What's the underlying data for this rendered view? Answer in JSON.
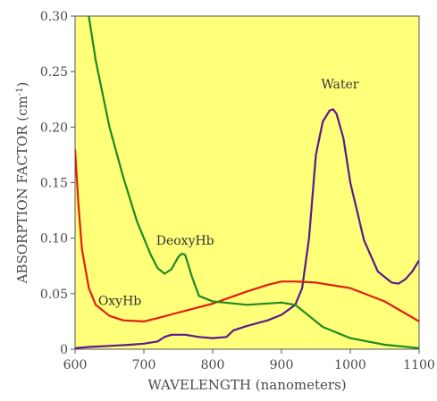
{
  "chart_data": {
    "type": "line",
    "title": "",
    "xlabel": "WAVELENGTH (nanometers)",
    "ylabel": "ABSORPTION FACTOR (cm",
    "ylabel_sup": "-1",
    "ylabel_close": ")",
    "xlim": [
      600,
      1100
    ],
    "ylim": [
      0,
      0.3
    ],
    "xticks": [
      "600",
      "700",
      "800",
      "900",
      "1000",
      "1100"
    ],
    "yticks": [
      "0",
      "0.05",
      "0.10",
      "0.15",
      "0.20",
      "0.25",
      "0.30"
    ],
    "grid": false,
    "background": "#ffff7a",
    "series": [
      {
        "name": "Water",
        "color": "#5b1a8c",
        "x": [
          600,
          620,
          650,
          680,
          700,
          720,
          730,
          740,
          760,
          780,
          800,
          820,
          830,
          850,
          880,
          900,
          920,
          930,
          940,
          950,
          960,
          970,
          975,
          980,
          990,
          1000,
          1020,
          1040,
          1060,
          1070,
          1080,
          1090,
          1100
        ],
        "y": [
          0.001,
          0.002,
          0.003,
          0.004,
          0.005,
          0.007,
          0.011,
          0.013,
          0.013,
          0.011,
          0.01,
          0.011,
          0.017,
          0.021,
          0.026,
          0.031,
          0.04,
          0.055,
          0.1,
          0.175,
          0.205,
          0.215,
          0.216,
          0.212,
          0.19,
          0.15,
          0.098,
          0.07,
          0.06,
          0.059,
          0.063,
          0.07,
          0.08
        ]
      },
      {
        "name": "OxyHb",
        "color": "#e01f10",
        "x": [
          600,
          605,
          610,
          620,
          630,
          650,
          670,
          700,
          720,
          750,
          800,
          850,
          880,
          900,
          920,
          950,
          1000,
          1050,
          1100
        ],
        "y": [
          0.18,
          0.13,
          0.09,
          0.055,
          0.04,
          0.03,
          0.026,
          0.025,
          0.028,
          0.033,
          0.041,
          0.052,
          0.058,
          0.061,
          0.061,
          0.06,
          0.055,
          0.043,
          0.025
        ]
      },
      {
        "name": "DeoxyHb",
        "color": "#1f8a1f",
        "x": [
          620,
          630,
          650,
          670,
          690,
          710,
          720,
          730,
          740,
          750,
          755,
          760,
          770,
          780,
          800,
          850,
          900,
          920,
          940,
          960,
          1000,
          1050,
          1100
        ],
        "y": [
          0.3,
          0.26,
          0.2,
          0.155,
          0.115,
          0.085,
          0.073,
          0.068,
          0.072,
          0.083,
          0.086,
          0.085,
          0.065,
          0.048,
          0.043,
          0.04,
          0.042,
          0.04,
          0.03,
          0.02,
          0.01,
          0.004,
          0.001
        ]
      }
    ],
    "annotations": [
      {
        "text": "Water",
        "x": 985,
        "y": 0.235
      },
      {
        "text": "DeoxyHb",
        "x": 760,
        "y": 0.094
      },
      {
        "text": "OxyHb",
        "x": 665,
        "y": 0.04
      }
    ]
  }
}
